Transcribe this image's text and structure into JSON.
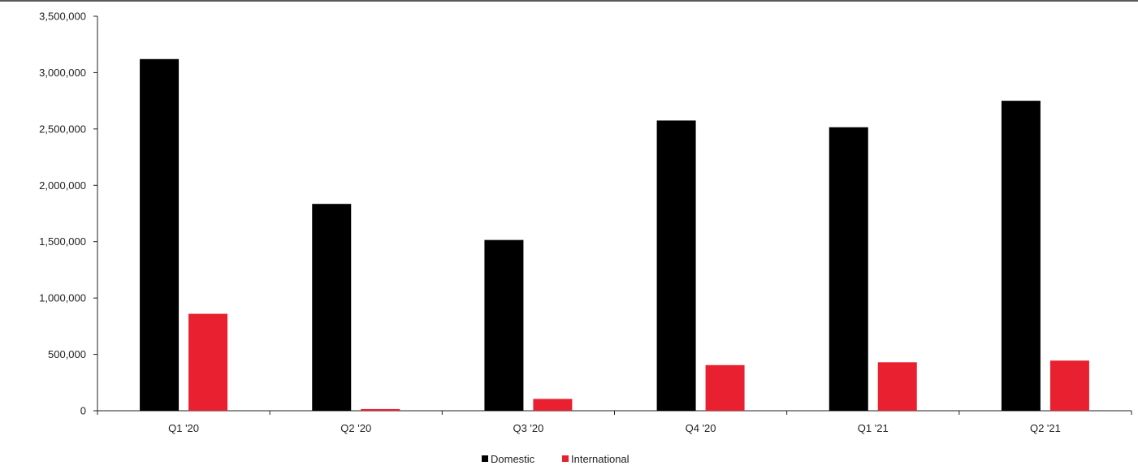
{
  "chart_data": {
    "type": "bar",
    "title": "",
    "xlabel": "",
    "ylabel": "",
    "categories": [
      "Q1 '20",
      "Q2 '20",
      "Q3 '20",
      "Q4 '20",
      "Q1 '21",
      "Q2 '21"
    ],
    "series": [
      {
        "name": "Domestic",
        "color": "#000000",
        "values": [
          3120000,
          1835000,
          1515000,
          2575000,
          2515000,
          2750000
        ]
      },
      {
        "name": "International",
        "color": "#e8202f",
        "values": [
          860000,
          15000,
          105000,
          405000,
          430000,
          445000
        ]
      }
    ],
    "ylim": [
      0,
      3500000
    ],
    "y_ticks": [
      0,
      500000,
      1000000,
      1500000,
      2000000,
      2500000,
      3000000,
      3500000
    ],
    "y_tick_labels": [
      "0",
      "500,000",
      "1,000,000",
      "1,500,000",
      "2,000,000",
      "2,500,000",
      "3,000,000",
      "3,500,000"
    ],
    "grid": false,
    "legend_position": "bottom-center"
  }
}
